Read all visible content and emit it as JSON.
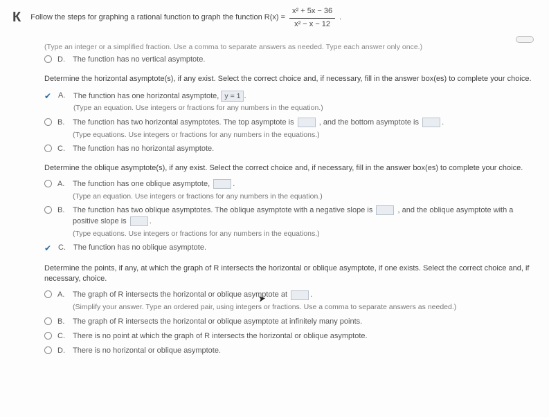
{
  "prompt_lead": "Follow the steps for graphing a rational function to graph the function R(x) =",
  "fraction": {
    "num": "x² + 5x − 36",
    "den": "x² − x − 12"
  },
  "hint_top": "(Type an integer or a simplified fraction. Use a comma to separate answers as needed. Type each answer only once.)",
  "opt_D_top": "The function has no vertical asymptote.",
  "q_horizontal": "Determine the horizontal asymptote(s), if any exist. Select the correct choice and, if necessary, fill in the answer box(es) to complete your choice.",
  "h_A_main": "The function has one horizontal asymptote,",
  "h_A_value": "y = 1",
  "h_A_sub": "(Type an equation. Use integers or fractions for any numbers in the equation.)",
  "h_B_main_1": "The function has two horizontal asymptotes. The top asymptote is",
  "h_B_main_2": ", and the bottom asymptote is",
  "h_B_sub": "(Type equations. Use integers or fractions for any numbers in the equations.)",
  "h_C": "The function has no horizontal asymptote.",
  "q_oblique": "Determine the oblique asymptote(s), if any exist. Select the correct choice and, if necessary, fill in the answer box(es) to complete your choice.",
  "o_A_main": "The function has one oblique asymptote,",
  "o_A_sub": "(Type an equation. Use integers or fractions for any numbers in the equation.)",
  "o_B_main_1": "The function has two oblique asymptotes. The oblique asymptote with a negative slope is",
  "o_B_main_2": ", and the oblique asymptote with a positive slope is",
  "o_B_sub": "(Type equations. Use integers or fractions for any numbers in the equations.)",
  "o_C": "The function has no oblique asymptote.",
  "q_points": "Determine the points, if any, at which the graph of R intersects the horizontal or oblique asymptote, if one exists. Select the correct choice and, if necessary, choice.",
  "p_A_main": "The graph of R intersects the horizontal or oblique asymptote at",
  "p_A_sub": "(Simplify your answer. Type an ordered pair, using integers or fractions. Use a comma to separate answers as needed.)",
  "p_B": "The graph of R intersects the horizontal or oblique asymptote at infinitely many points.",
  "p_C": "There is no point at which the graph of R intersects the horizontal or oblique asymptote.",
  "p_D": "There is no horizontal or oblique asymptote.",
  "letters": {
    "A": "A.",
    "B": "B.",
    "C": "C.",
    "D": "D."
  }
}
